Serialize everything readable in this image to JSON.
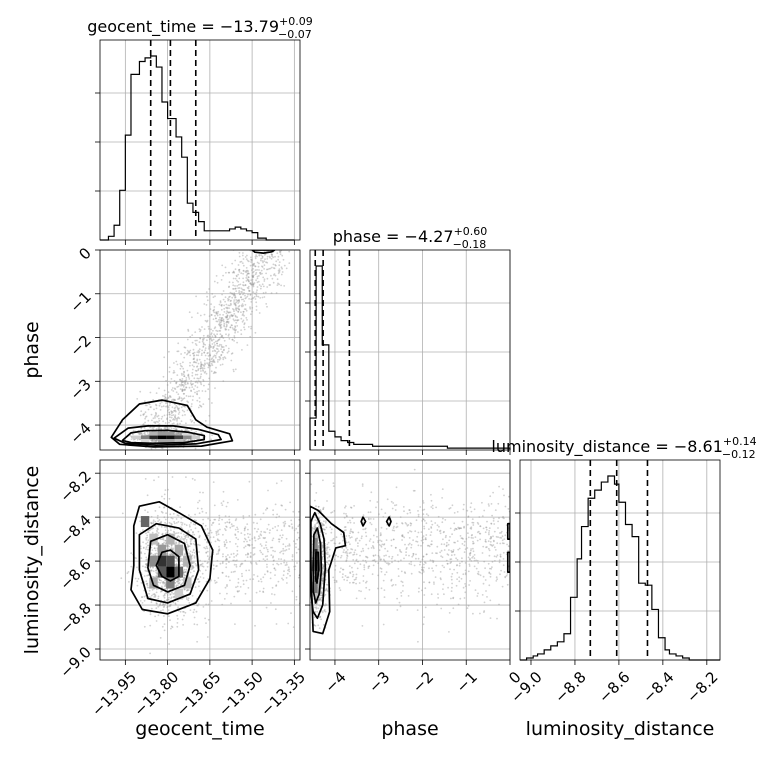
{
  "chart_data": {
    "type": "corner",
    "parameters": [
      "geocent_time",
      "phase",
      "luminosity_distance"
    ],
    "axis_labels": {
      "geocent_time": "geocent_time",
      "phase": "phase",
      "luminosity_distance": "luminosity_distance"
    },
    "ranges": {
      "geocent_time": [
        -14.04,
        -13.33
      ],
      "phase": [
        -4.57,
        0.0
      ],
      "luminosity_distance": [
        -9.05,
        -8.14
      ]
    },
    "ticks": {
      "geocent_time": {
        "values": [
          -13.95,
          -13.8,
          -13.65,
          -13.5,
          -13.35
        ],
        "labels": [
          "−13.95",
          "−13.80",
          "−13.65",
          "−13.50",
          "−13.35"
        ]
      },
      "phase": {
        "values": [
          -4,
          -3,
          -2,
          -1,
          0
        ],
        "labels": [
          "−4",
          "−3",
          "−2",
          "−1",
          "0"
        ]
      },
      "luminosity_distance": {
        "values": [
          -9.0,
          -8.8,
          -8.6,
          -8.4,
          -8.2
        ],
        "labels": [
          "−9.0",
          "−8.8",
          "−8.6",
          "−8.4",
          "−8.2"
        ]
      }
    },
    "titles": {
      "geocent_time": {
        "name": "geocent_time",
        "median": "−13.79",
        "plus": "+0.09",
        "minus": "−0.07"
      },
      "phase": {
        "name": "phase",
        "median": "−4.27",
        "plus": "+0.60",
        "minus": "−0.18"
      },
      "luminosity_distance": {
        "name": "luminosity_distance",
        "median": "−8.61",
        "plus": "+0.14",
        "minus": "−0.12"
      }
    },
    "quantiles": {
      "geocent_time": [
        -13.86,
        -13.79,
        -13.7
      ],
      "phase": [
        -4.45,
        -4.27,
        -3.67
      ],
      "luminosity_distance": [
        -8.73,
        -8.61,
        -8.47
      ]
    },
    "histograms": {
      "geocent_time": {
        "edges": [
          -14.04,
          -14.01,
          -13.99,
          -13.97,
          -13.95,
          -13.93,
          -13.9,
          -13.88,
          -13.86,
          -13.84,
          -13.82,
          -13.8,
          -13.77,
          -13.75,
          -13.73,
          -13.71,
          -13.69,
          -13.67,
          -13.65,
          -13.63,
          -13.6,
          -13.58,
          -13.56,
          -13.54,
          -13.52,
          -13.5,
          -13.48,
          -13.45,
          -13.43,
          -13.41,
          -13.39,
          -13.37,
          -13.35
        ],
        "values": [
          0.0,
          0.02,
          0.08,
          0.27,
          0.57,
          0.9,
          0.97,
          0.99,
          1.0,
          0.94,
          0.75,
          0.66,
          0.56,
          0.45,
          0.2,
          0.15,
          0.1,
          0.05,
          0.05,
          0.05,
          0.05,
          0.06,
          0.07,
          0.06,
          0.05,
          0.04,
          0.01,
          0.0,
          0.0,
          0.0,
          0.0,
          0.0
        ]
      },
      "phase": {
        "edges": [
          -4.57,
          -4.43,
          -4.29,
          -4.14,
          -4.0,
          -3.86,
          -3.71,
          -3.57,
          -3.43,
          -3.29,
          -3.14,
          -3.0,
          -2.86,
          -2.71,
          -2.57,
          -2.43,
          -2.29,
          -2.14,
          -2.0,
          -1.86,
          -1.71,
          -1.57,
          -1.43,
          -1.29,
          -1.14,
          -1.0,
          -0.86,
          -0.71,
          -0.57,
          -0.43,
          -0.29,
          -0.14,
          0.0
        ],
        "values": [
          0.17,
          0.98,
          0.56,
          0.1,
          0.07,
          0.05,
          0.04,
          0.03,
          0.03,
          0.03,
          0.02,
          0.02,
          0.02,
          0.02,
          0.02,
          0.02,
          0.02,
          0.02,
          0.02,
          0.02,
          0.02,
          0.02,
          0.01,
          0.01,
          0.01,
          0.01,
          0.01,
          0.01,
          0.01,
          0.01,
          0.01,
          0.01
        ]
      },
      "luminosity_distance": {
        "edges": [
          -9.05,
          -9.02,
          -8.99,
          -8.97,
          -8.94,
          -8.91,
          -8.88,
          -8.85,
          -8.82,
          -8.79,
          -8.77,
          -8.74,
          -8.71,
          -8.68,
          -8.65,
          -8.62,
          -8.6,
          -8.57,
          -8.54,
          -8.51,
          -8.48,
          -8.45,
          -8.42,
          -8.39,
          -8.37,
          -8.34,
          -8.31,
          -8.28,
          -8.25,
          -8.22,
          -8.2,
          -8.17,
          -8.14
        ],
        "values": [
          0.0,
          0.01,
          0.02,
          0.03,
          0.05,
          0.07,
          0.09,
          0.13,
          0.31,
          0.5,
          0.66,
          0.8,
          0.84,
          0.88,
          0.91,
          0.87,
          0.78,
          0.67,
          0.61,
          0.38,
          0.37,
          0.25,
          0.11,
          0.05,
          0.03,
          0.02,
          0.01,
          0.0,
          0.0,
          0.0,
          0.0,
          0.0
        ]
      }
    },
    "contours": {
      "phase_vs_geocent_time": [
        [
          [
            -13.96,
            -4.35
          ],
          [
            -13.93,
            -4.18
          ],
          [
            -13.88,
            -4.13
          ],
          [
            -13.8,
            -4.12
          ],
          [
            -13.73,
            -4.16
          ],
          [
            -13.67,
            -4.24
          ],
          [
            -13.67,
            -4.33
          ],
          [
            -13.74,
            -4.4
          ],
          [
            -13.85,
            -4.42
          ],
          [
            -13.93,
            -4.4
          ]
        ],
        [
          [
            -13.99,
            -4.3
          ],
          [
            -13.94,
            -4.07
          ],
          [
            -13.87,
            -4.02
          ],
          [
            -13.78,
            -4.02
          ],
          [
            -13.69,
            -4.1
          ],
          [
            -13.62,
            -4.22
          ],
          [
            -13.61,
            -4.33
          ],
          [
            -13.7,
            -4.43
          ],
          [
            -13.84,
            -4.46
          ],
          [
            -13.95,
            -4.42
          ]
        ],
        [
          [
            -14.0,
            -4.28
          ],
          [
            -13.96,
            -3.88
          ],
          [
            -13.9,
            -3.52
          ],
          [
            -13.82,
            -3.43
          ],
          [
            -13.73,
            -3.55
          ],
          [
            -13.7,
            -3.88
          ],
          [
            -13.66,
            -4.05
          ],
          [
            -13.58,
            -4.2
          ],
          [
            -13.57,
            -4.36
          ],
          [
            -13.68,
            -4.48
          ],
          [
            -13.85,
            -4.5
          ],
          [
            -13.97,
            -4.44
          ]
        ],
        [
          [
            -13.5,
            0.0
          ],
          [
            -13.49,
            -0.05
          ],
          [
            -13.46,
            -0.07
          ],
          [
            -13.43,
            -0.04
          ],
          [
            -13.42,
            0.0
          ]
        ]
      ],
      "luminosity_distance_vs_geocent_time": [
        [
          [
            -13.84,
            -8.62
          ],
          [
            -13.82,
            -8.56
          ],
          [
            -13.79,
            -8.55
          ],
          [
            -13.76,
            -8.58
          ],
          [
            -13.76,
            -8.67
          ],
          [
            -13.79,
            -8.69
          ],
          [
            -13.82,
            -8.67
          ]
        ],
        [
          [
            -13.87,
            -8.63
          ],
          [
            -13.86,
            -8.51
          ],
          [
            -13.8,
            -8.48
          ],
          [
            -13.74,
            -8.52
          ],
          [
            -13.72,
            -8.62
          ],
          [
            -13.74,
            -8.71
          ],
          [
            -13.8,
            -8.74
          ],
          [
            -13.85,
            -8.71
          ]
        ],
        [
          [
            -13.9,
            -8.64
          ],
          [
            -13.9,
            -8.48
          ],
          [
            -13.84,
            -8.43
          ],
          [
            -13.76,
            -8.45
          ],
          [
            -13.7,
            -8.5
          ],
          [
            -13.69,
            -8.64
          ],
          [
            -13.72,
            -8.75
          ],
          [
            -13.8,
            -8.79
          ],
          [
            -13.87,
            -8.77
          ]
        ],
        [
          [
            -13.92,
            -8.62
          ],
          [
            -13.92,
            -8.44
          ],
          [
            -13.9,
            -8.35
          ],
          [
            -13.83,
            -8.33
          ],
          [
            -13.76,
            -8.38
          ],
          [
            -13.68,
            -8.44
          ],
          [
            -13.64,
            -8.55
          ],
          [
            -13.65,
            -8.68
          ],
          [
            -13.7,
            -8.79
          ],
          [
            -13.8,
            -8.84
          ],
          [
            -13.89,
            -8.82
          ],
          [
            -13.93,
            -8.73
          ]
        ]
      ],
      "luminosity_distance_vs_phase": [
        [
          [
            -4.45,
            -8.62
          ],
          [
            -4.43,
            -8.56
          ],
          [
            -4.38,
            -8.56
          ],
          [
            -4.37,
            -8.64
          ],
          [
            -4.41,
            -8.7
          ],
          [
            -4.44,
            -8.68
          ]
        ],
        [
          [
            -4.5,
            -8.63
          ],
          [
            -4.48,
            -8.48
          ],
          [
            -4.4,
            -8.45
          ],
          [
            -4.33,
            -8.52
          ],
          [
            -4.31,
            -8.64
          ],
          [
            -4.36,
            -8.75
          ],
          [
            -4.44,
            -8.79
          ],
          [
            -4.49,
            -8.74
          ]
        ],
        [
          [
            -4.55,
            -8.62
          ],
          [
            -4.55,
            -8.42
          ],
          [
            -4.46,
            -8.38
          ],
          [
            -4.34,
            -8.43
          ],
          [
            -4.25,
            -8.5
          ],
          [
            -4.22,
            -8.63
          ],
          [
            -4.28,
            -8.8
          ],
          [
            -4.4,
            -8.86
          ],
          [
            -4.5,
            -8.83
          ],
          [
            -4.55,
            -8.74
          ]
        ],
        [
          [
            -4.57,
            -8.53
          ],
          [
            -4.57,
            -8.35
          ],
          [
            -4.38,
            -8.37
          ],
          [
            -4.08,
            -8.43
          ],
          [
            -3.8,
            -8.47
          ],
          [
            -3.76,
            -8.53
          ],
          [
            -3.98,
            -8.54
          ],
          [
            -4.14,
            -8.64
          ],
          [
            -4.12,
            -8.83
          ],
          [
            -4.28,
            -8.93
          ],
          [
            -4.5,
            -8.92
          ]
        ],
        [
          [
            -3.4,
            -8.42
          ],
          [
            -3.36,
            -8.4
          ],
          [
            -3.3,
            -8.42
          ],
          [
            -3.36,
            -8.44
          ]
        ],
        [
          [
            -2.82,
            -8.42
          ],
          [
            -2.76,
            -8.4
          ],
          [
            -2.72,
            -8.42
          ],
          [
            -2.76,
            -8.44
          ]
        ],
        [
          [
            0.0,
            -8.43
          ],
          [
            -0.05,
            -8.43
          ],
          [
            -0.05,
            -8.5
          ],
          [
            0.0,
            -8.5
          ]
        ],
        [
          [
            0.0,
            -8.56
          ],
          [
            -0.05,
            -8.56
          ],
          [
            -0.05,
            -8.65
          ],
          [
            0.0,
            -8.65
          ]
        ]
      ]
    },
    "density_cells": {
      "phase_vs_geocent_time": [
        [
          -13.82,
          -4.28,
          1.0
        ],
        [
          -13.79,
          -4.28,
          0.95
        ],
        [
          -13.85,
          -4.28,
          0.85
        ],
        [
          -13.76,
          -4.28,
          0.75
        ],
        [
          -13.88,
          -4.28,
          0.5
        ],
        [
          -13.73,
          -4.28,
          0.45
        ],
        [
          -13.82,
          -4.2,
          0.4
        ],
        [
          -13.79,
          -4.2,
          0.4
        ],
        [
          -13.82,
          -4.36,
          0.35
        ],
        [
          -13.79,
          -4.36,
          0.35
        ],
        [
          -13.85,
          -4.2,
          0.3
        ],
        [
          -13.76,
          -4.36,
          0.25
        ],
        [
          -13.91,
          -4.28,
          0.2
        ],
        [
          -13.7,
          -4.28,
          0.2
        ],
        [
          -13.88,
          -4.36,
          0.15
        ],
        [
          -13.73,
          -4.2,
          0.15
        ]
      ],
      "luminosity_distance_vs_geocent_time": [
        [
          -13.79,
          -8.65,
          1.0
        ],
        [
          -13.82,
          -8.6,
          0.8
        ],
        [
          -13.79,
          -8.6,
          0.7
        ],
        [
          -13.82,
          -8.65,
          0.65
        ],
        [
          -13.76,
          -8.65,
          0.6
        ],
        [
          -13.79,
          -8.7,
          0.5
        ],
        [
          -13.85,
          -8.6,
          0.45
        ],
        [
          -13.82,
          -8.55,
          0.4
        ],
        [
          -13.76,
          -8.55,
          0.35
        ],
        [
          -13.85,
          -8.7,
          0.35
        ],
        [
          -13.88,
          -8.42,
          0.6
        ],
        [
          -13.73,
          -8.6,
          0.3
        ],
        [
          -13.79,
          -8.5,
          0.3
        ],
        [
          -13.85,
          -8.5,
          0.25
        ],
        [
          -13.73,
          -8.7,
          0.25
        ],
        [
          -13.76,
          -8.75,
          0.2
        ]
      ],
      "luminosity_distance_vs_phase": [
        [
          -4.43,
          -8.62,
          1.0
        ],
        [
          -4.43,
          -8.57,
          0.85
        ],
        [
          -4.43,
          -8.67,
          0.8
        ],
        [
          -4.43,
          -8.72,
          0.55
        ],
        [
          -4.43,
          -8.52,
          0.5
        ],
        [
          -4.36,
          -8.62,
          0.45
        ],
        [
          -4.5,
          -8.62,
          0.4
        ],
        [
          -4.36,
          -8.57,
          0.35
        ],
        [
          -4.36,
          -8.72,
          0.3
        ],
        [
          -4.5,
          -8.72,
          0.3
        ],
        [
          -4.43,
          -8.47,
          0.3
        ],
        [
          -4.43,
          -8.77,
          0.25
        ]
      ]
    },
    "samples_scatter": {
      "phase_vs_geocent_time": {
        "n": 2200,
        "seed": 11
      },
      "luminosity_distance_vs_geocent_time": {
        "n": 1600,
        "seed": 23
      },
      "luminosity_distance_vs_phase": {
        "n": 1600,
        "seed": 37
      }
    }
  }
}
